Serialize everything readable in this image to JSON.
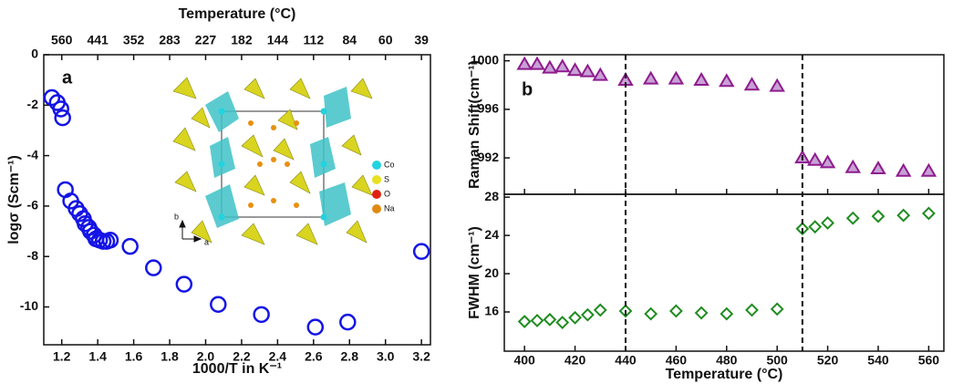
{
  "chart_data": [
    {
      "type": "scatter",
      "panel_label": "a",
      "xlabel": "1000/T in K⁻¹",
      "ylabel": "logσ (Scm⁻¹)",
      "x2label": "Temperature (°C)",
      "xlim": [
        1.1,
        3.25
      ],
      "ylim": [
        -11.5,
        0
      ],
      "xticks": [
        1.2,
        1.4,
        1.6,
        1.8,
        {
          "value": 2,
          "label": "2.0"
        },
        2.2,
        2.4,
        2.6,
        2.8,
        {
          "value": 3,
          "label": "3.0"
        },
        3.2
      ],
      "yticks": [
        0,
        -2,
        -4,
        -6,
        -8,
        -10
      ],
      "x2ticks": [
        {
          "value": 1.2,
          "label": "560"
        },
        {
          "value": 1.4,
          "label": "441"
        },
        {
          "value": 1.6,
          "label": "352"
        },
        {
          "value": 1.8,
          "label": "283"
        },
        {
          "value": 2.0,
          "label": "227"
        },
        {
          "value": 2.2,
          "label": "182"
        },
        {
          "value": 2.4,
          "label": "144"
        },
        {
          "value": 2.6,
          "label": "112"
        },
        {
          "value": 2.8,
          "label": "84"
        },
        {
          "value": 3.0,
          "label": "60"
        },
        {
          "value": 3.2,
          "label": "39"
        }
      ],
      "color": "#1414e6",
      "marker": "circle",
      "x": [
        1.145,
        1.175,
        1.195,
        1.205,
        1.22,
        1.25,
        1.28,
        1.3,
        1.32,
        1.33,
        1.35,
        1.36,
        1.38,
        1.39,
        1.41,
        1.43,
        1.45,
        1.47,
        1.58,
        1.71,
        1.88,
        2.07,
        2.31,
        2.61,
        2.79,
        3.2
      ],
      "values": [
        -1.7,
        -1.9,
        -2.15,
        -2.5,
        -5.35,
        -5.8,
        -6.1,
        -6.3,
        -6.5,
        -6.7,
        -6.85,
        -7.0,
        -7.15,
        -7.3,
        -7.35,
        -7.4,
        -7.4,
        -7.35,
        -7.6,
        -8.45,
        -9.1,
        -9.9,
        -10.3,
        -10.8,
        -10.6,
        -7.8
      ],
      "inset": {
        "legend": [
          "Co",
          "S",
          "O",
          "Na"
        ],
        "legend_colors": [
          "#22d3e0",
          "#e8e020",
          "#e02010",
          "#e08a10"
        ],
        "axes": [
          "a",
          "b"
        ]
      }
    },
    {
      "type": "scatter-stack",
      "panel_label": "b",
      "xlabel": "Temperature (°C)",
      "xlim": [
        392,
        566
      ],
      "xticks": [
        400,
        420,
        440,
        460,
        480,
        500,
        520,
        540,
        560
      ],
      "vlines": [
        440,
        510
      ],
      "x": [
        400,
        405,
        410,
        415,
        420,
        425,
        430,
        440,
        450,
        460,
        470,
        480,
        490,
        500,
        510,
        515,
        520,
        530,
        540,
        550,
        560
      ],
      "panels": [
        {
          "ylabel": "Raman Shift(cm⁻¹)",
          "ylim": [
            989,
            1000.5
          ],
          "yticks": [
            992,
            996,
            1000
          ],
          "color": "#8e1c8e",
          "marker": "triangle",
          "values": [
            999.7,
            999.7,
            999.4,
            999.5,
            999.2,
            999.1,
            998.8,
            998.4,
            998.5,
            998.5,
            998.4,
            998.3,
            998.0,
            997.9,
            992.0,
            991.8,
            991.6,
            991.2,
            991.1,
            990.9,
            990.9
          ]
        },
        {
          "ylabel": "FWHM (cm⁻¹)",
          "ylim": [
            11.9,
            28.3
          ],
          "yticks": [
            16,
            20,
            24,
            28
          ],
          "color": "#1f8c1f",
          "marker": "diamond",
          "values": [
            15.0,
            15.1,
            15.2,
            14.9,
            15.4,
            15.7,
            16.2,
            16.1,
            15.8,
            16.1,
            15.9,
            15.8,
            16.2,
            16.3,
            24.7,
            24.9,
            25.3,
            25.8,
            26.0,
            26.1,
            26.3
          ]
        }
      ]
    }
  ]
}
